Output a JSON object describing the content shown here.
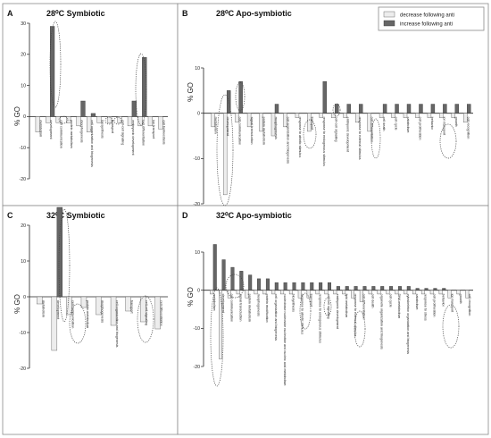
{
  "figure": {
    "legend": {
      "decrease_label": "decrease following anti",
      "increase_label": "increase following anti"
    },
    "colors": {
      "decrease": "#ededed",
      "increase": "#666666",
      "frame": "#8a8a8a"
    }
  },
  "chart_data": [
    {
      "id": "A",
      "type": "bar",
      "letter": "A",
      "title": "28⁰C Symbiotic",
      "ylabel": "% GO",
      "ylim": [
        -20,
        30
      ],
      "yticks": [
        -20,
        -10,
        0,
        10,
        20,
        30
      ],
      "categories": [
        "metabolism",
        "development",
        "cell communication",
        "protein metabolism",
        "morphogenesis",
        "cell organization and biogenesis",
        "biosynthesis",
        "transport",
        "cell-cell signaling",
        "embryonic development",
        "cell differentiation",
        "ion transport",
        "cell homeostasis"
      ],
      "series": [
        {
          "name": "decrease following anti",
          "values": [
            -5,
            -2,
            -2,
            -2,
            -3,
            -5,
            -2,
            -2,
            -2,
            -3,
            -3,
            -3,
            -4
          ]
        },
        {
          "name": "increase following anti",
          "values": [
            0,
            29,
            0,
            0,
            5,
            1,
            0,
            0,
            0,
            5,
            19,
            0,
            0
          ]
        }
      ]
    },
    {
      "id": "B",
      "type": "bar",
      "letter": "B",
      "title": "28⁰C Apo-symbiotic",
      "ylabel": "% GO",
      "ylim": [
        -20,
        10
      ],
      "yticks": [
        -20,
        -10,
        0,
        10
      ],
      "categories": [
        "metabolism",
        "development",
        "cell communication",
        "signal transduction",
        "protein metabolism",
        "morphogenesis",
        "cell organization and biogenesis",
        "response to abiotic stimulus",
        "transport",
        "response to endogenous stimulus",
        "cell-cell signaling",
        "embryonic development",
        "response to external stimulus",
        "cell differentiation",
        "cell death",
        "cell cycle",
        "catabolism",
        "cell proliferation",
        "behavior",
        "ion transport",
        "growth",
        "cell recognition"
      ],
      "series": [
        {
          "name": "decrease following anti",
          "values": [
            -3,
            -18,
            -2,
            -3,
            -4,
            -5,
            -3,
            -1,
            -4,
            -1,
            -1,
            -1,
            -2,
            -4,
            -1,
            -1,
            -1,
            -1,
            -1,
            -1,
            -1,
            -2
          ]
        },
        {
          "name": "increase following anti",
          "values": [
            0,
            5,
            7,
            0,
            0,
            2,
            0,
            0,
            0,
            7,
            2,
            2,
            2,
            0,
            2,
            2,
            2,
            2,
            2,
            2,
            2,
            2
          ]
        }
      ]
    },
    {
      "id": "C",
      "type": "bar",
      "letter": "C",
      "title": "32⁰C Symbiotic",
      "ylabel": "% GO",
      "ylim": [
        -20,
        20
      ],
      "yticks": [
        -20,
        -10,
        0,
        10,
        20
      ],
      "categories": [
        "metabolism",
        "development",
        "cell communication",
        "protein metabolism",
        "morphogenesis",
        "cell organization and biogenesis",
        "transport",
        "cell-cell signaling",
        "cell differentiation"
      ],
      "series": [
        {
          "name": "decrease following anti",
          "values": [
            -2,
            -15,
            -5,
            -3,
            -5,
            -8,
            -4,
            -7,
            -9
          ]
        },
        {
          "name": "increase following anti",
          "values": [
            0,
            25,
            0,
            0,
            0,
            0,
            0,
            0,
            0
          ]
        }
      ]
    },
    {
      "id": "D",
      "type": "bar",
      "letter": "D",
      "title": "32⁰C Apo-symbiotic",
      "ylabel": "% GO",
      "ylim": [
        -20,
        10
      ],
      "yticks": [
        -20,
        -10,
        0,
        10
      ],
      "categories": [
        "metabolism",
        "development",
        "cell communication",
        "signal transduction",
        "protein metabolism",
        "morphogenesis",
        "protein modification",
        "cell organization and biogenesis",
        "nucleobase nucleoside nucleotide and nucleic acid metabolism",
        "biosynthesis",
        "response to abiotic stimulus",
        "transport",
        "response to endogenous stimulus",
        "cell-cell signaling",
        "embryonic development",
        "lipid metabolism",
        "response to external stimulus",
        "cell differentiation",
        "cell death",
        "organelle organization and biogenesis",
        "cell cycle",
        "DNA metabolism",
        "cytoskeleton organization and biogenesis",
        "catabolism",
        "response to stress",
        "cell proliferation",
        "behavior",
        "ion transport",
        "growth",
        "cell recognition"
      ],
      "series": [
        {
          "name": "decrease following anti",
          "values": [
            -1,
            -18,
            -2,
            -1,
            -2,
            -1,
            -1,
            -1,
            -1,
            -1,
            -2,
            -2,
            -1,
            -1,
            -1,
            -1,
            -2,
            -3,
            -1,
            -1,
            -1,
            -1,
            -1,
            -1,
            -1,
            -1,
            -1,
            -2,
            -1,
            -2
          ]
        },
        {
          "name": "increase following anti",
          "values": [
            12,
            8,
            6,
            5,
            4,
            3,
            3,
            2,
            2,
            2,
            2,
            2,
            2,
            2,
            1,
            1,
            1,
            1,
            1,
            1,
            1,
            1,
            1,
            0.5,
            0.5,
            0.5,
            0.5,
            0,
            0,
            0
          ]
        }
      ]
    }
  ]
}
